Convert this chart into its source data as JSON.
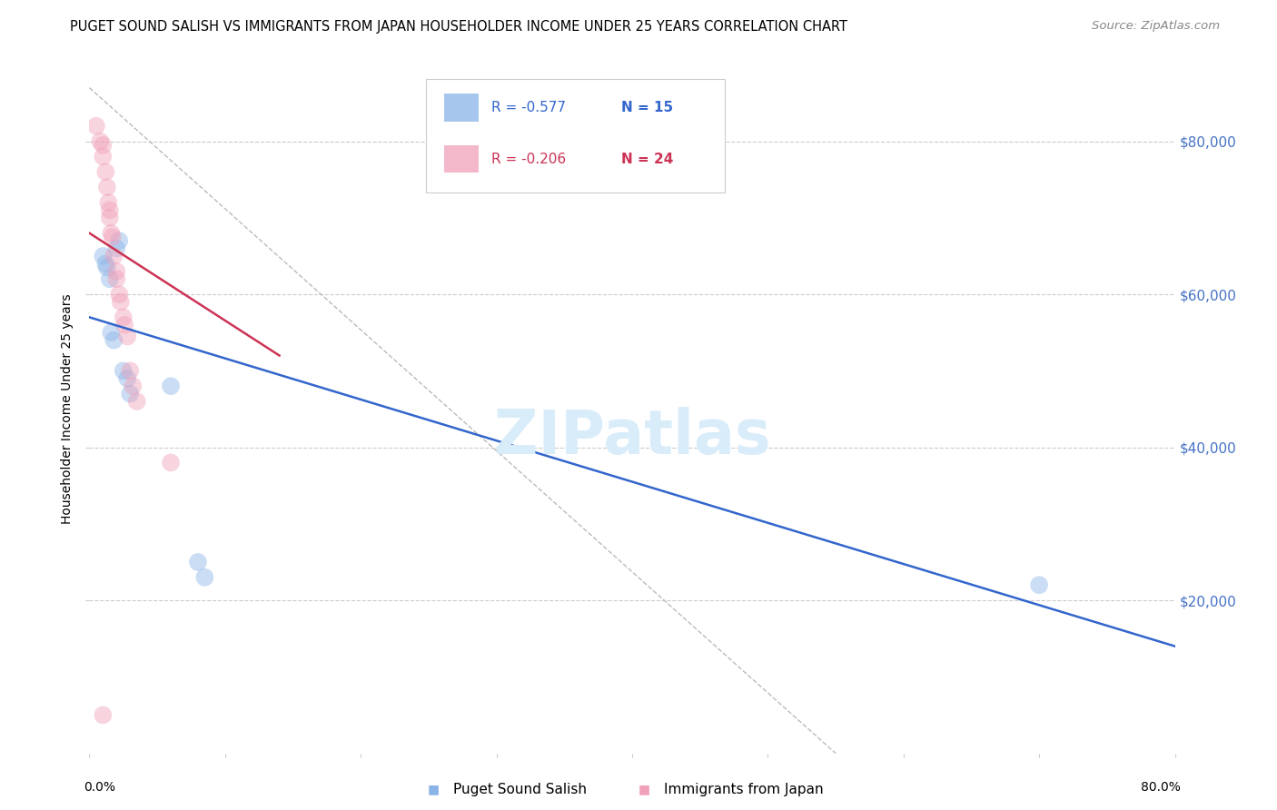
{
  "title": "PUGET SOUND SALISH VS IMMIGRANTS FROM JAPAN HOUSEHOLDER INCOME UNDER 25 YEARS CORRELATION CHART",
  "source": "Source: ZipAtlas.com",
  "ylabel": "Householder Income Under 25 years",
  "y_tick_labels": [
    "$80,000",
    "$60,000",
    "$40,000",
    "$20,000"
  ],
  "y_tick_values": [
    80000,
    60000,
    40000,
    20000
  ],
  "y_axis_color": "#4472C4",
  "watermark": "ZIPatlas",
  "legend_r_blue": "R = -0.577",
  "legend_n_blue": "N = 15",
  "legend_r_pink": "R = -0.206",
  "legend_n_pink": "N = 24",
  "legend_labels_bottom": [
    "Puget Sound Salish",
    "Immigrants from Japan"
  ],
  "blue_scatter": [
    [
      0.01,
      65000
    ],
    [
      0.012,
      64000
    ],
    [
      0.013,
      63500
    ],
    [
      0.015,
      62000
    ],
    [
      0.016,
      55000
    ],
    [
      0.018,
      54000
    ],
    [
      0.02,
      66000
    ],
    [
      0.022,
      67000
    ],
    [
      0.025,
      50000
    ],
    [
      0.028,
      49000
    ],
    [
      0.03,
      47000
    ],
    [
      0.06,
      48000
    ],
    [
      0.08,
      25000
    ],
    [
      0.085,
      23000
    ],
    [
      0.7,
      22000
    ]
  ],
  "pink_scatter": [
    [
      0.005,
      82000
    ],
    [
      0.008,
      80000
    ],
    [
      0.01,
      79500
    ],
    [
      0.01,
      78000
    ],
    [
      0.012,
      76000
    ],
    [
      0.013,
      74000
    ],
    [
      0.014,
      72000
    ],
    [
      0.015,
      71000
    ],
    [
      0.015,
      70000
    ],
    [
      0.016,
      68000
    ],
    [
      0.017,
      67500
    ],
    [
      0.018,
      65000
    ],
    [
      0.02,
      63000
    ],
    [
      0.02,
      62000
    ],
    [
      0.022,
      60000
    ],
    [
      0.023,
      59000
    ],
    [
      0.025,
      57000
    ],
    [
      0.026,
      56000
    ],
    [
      0.028,
      54500
    ],
    [
      0.03,
      50000
    ],
    [
      0.032,
      48000
    ],
    [
      0.035,
      46000
    ],
    [
      0.06,
      38000
    ],
    [
      0.01,
      5000
    ]
  ],
  "blue_line_x": [
    0.0,
    0.8
  ],
  "blue_line_y": [
    57000,
    14000
  ],
  "pink_line_x": [
    0.0,
    0.14
  ],
  "pink_line_y": [
    68000,
    52000
  ],
  "gray_line_x": [
    0.0,
    0.55
  ],
  "gray_line_y": [
    87000,
    0
  ],
  "xlim": [
    0.0,
    0.8
  ],
  "ylim": [
    0,
    90000
  ],
  "background_color": "#FFFFFF",
  "scatter_size": 200,
  "scatter_alpha": 0.45,
  "blue_color": "#8AB4E8",
  "pink_color": "#F0A0B8",
  "blue_line_color": "#3366CC",
  "pink_line_color": "#CC3355",
  "gray_line_color": "#BBBBBB",
  "title_fontsize": 10.5,
  "source_fontsize": 9.5,
  "ylabel_fontsize": 10,
  "tick_label_fontsize": 10,
  "watermark_fontsize": 48,
  "watermark_color": "#D8ECFA",
  "legend_fontsize": 11
}
